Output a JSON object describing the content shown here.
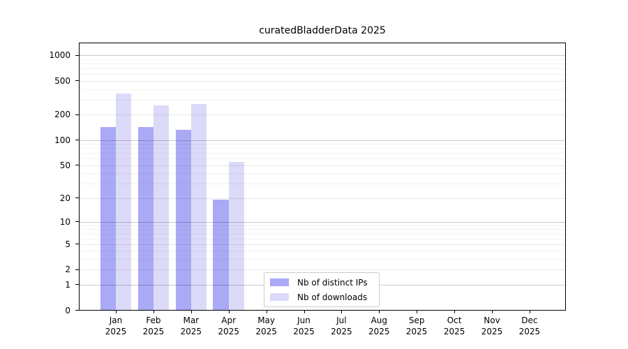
{
  "chart_data": {
    "type": "bar",
    "title": "curatedBladderData 2025",
    "categories": [
      "Jan 2025",
      "Feb 2025",
      "Mar 2025",
      "Apr 2025",
      "May 2025",
      "Jun 2025",
      "Jul 2025",
      "Aug 2025",
      "Sep 2025",
      "Oct 2025",
      "Nov 2025",
      "Dec 2025"
    ],
    "months": [
      "Jan",
      "Feb",
      "Mar",
      "Apr",
      "May",
      "Jun",
      "Jul",
      "Aug",
      "Sep",
      "Oct",
      "Nov",
      "Dec"
    ],
    "year_label": "2025",
    "series": [
      {
        "name": "Nb of distinct IPs",
        "color": "#a9a9f6",
        "values": [
          142,
          142,
          131,
          19,
          0,
          0,
          0,
          0,
          0,
          0,
          0,
          0
        ]
      },
      {
        "name": "Nb of downloads",
        "color": "#dbdbf9",
        "values": [
          355,
          253,
          267,
          54,
          0,
          0,
          0,
          0,
          0,
          0,
          0,
          0
        ]
      }
    ],
    "xlabel": "",
    "ylabel": "",
    "y_ticks": [
      0,
      1,
      2,
      5,
      10,
      20,
      50,
      100,
      200,
      500,
      1000
    ],
    "y_decade_ticks": [
      1,
      10,
      100,
      1000
    ],
    "y_minor_gridlines": [
      3,
      4,
      6,
      7,
      8,
      9,
      30,
      40,
      60,
      70,
      80,
      90,
      300,
      400,
      600,
      700,
      800,
      900
    ],
    "y_scale": "log10(1+value)",
    "ylim": [
      0,
      1400
    ],
    "grid": true,
    "legend_position": "inside bottom, left of center"
  }
}
